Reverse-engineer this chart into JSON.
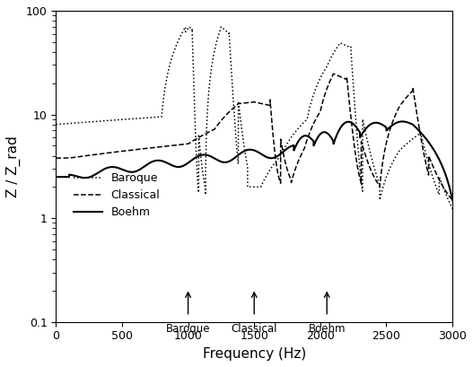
{
  "title": "",
  "xlabel": "Frequency (Hz)",
  "ylabel": "Z / Z_rad",
  "xlim": [
    0,
    3000
  ],
  "ylim": [
    0.1,
    100
  ],
  "arrow_freqs": [
    1000,
    1500,
    2050
  ],
  "arrow_labels": [
    "Baroque",
    "Classical",
    "Boehm"
  ],
  "legend_labels": [
    "Baroque",
    "Classical",
    "Boehm"
  ],
  "background_color": "#ffffff"
}
